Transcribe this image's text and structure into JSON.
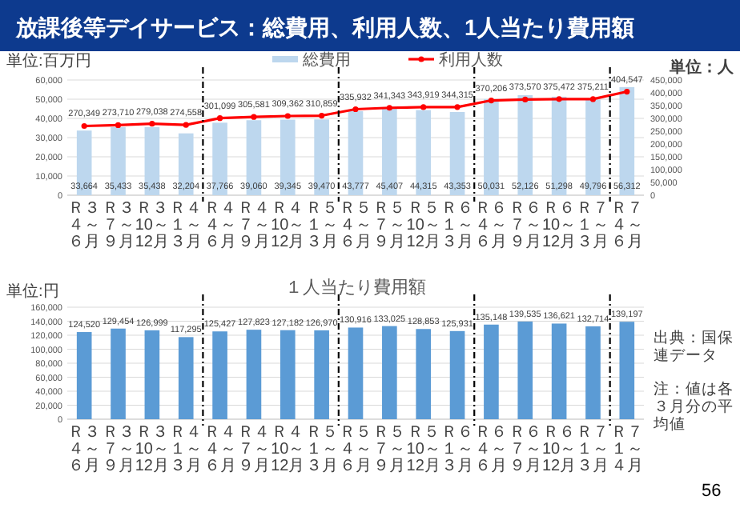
{
  "chart_data": [
    {
      "type": "bar",
      "title": "放課後等デイサービス：総費用、利用人数、1人当たり費用額",
      "ylabel": "単位:百万円",
      "y2label": "単位：人",
      "categories": [
        "Ｒ３４～６月",
        "Ｒ３７～９月",
        "Ｒ３10～12月",
        "Ｒ４１～３月",
        "Ｒ４４～６月",
        "Ｒ４７～９月",
        "Ｒ４10～12月",
        "Ｒ５１～３月",
        "Ｒ５４～６月",
        "Ｒ５７～９月",
        "Ｒ５10～12月",
        "Ｒ６１～３月",
        "Ｒ６４～６月",
        "Ｒ６７～９月",
        "Ｒ６10～12月",
        "Ｒ７１～３月",
        "Ｒ７４～６月"
      ],
      "series": [
        {
          "name": "総費用",
          "type": "bar",
          "color": "#bdd7ee",
          "values": [
            33664,
            35433,
            35438,
            32204,
            37766,
            39060,
            39345,
            39470,
            43777,
            45407,
            44315,
            43353,
            50031,
            52126,
            51298,
            49796,
            56312
          ],
          "value_labels": [
            "33,664",
            "35,433",
            "35,438",
            "32,204",
            "37,766",
            "39,060",
            "39,345",
            "39,470",
            "43,777",
            "45,407",
            "44,315",
            "43,353",
            "50,031",
            "52,126",
            "51,298",
            "49,796",
            "56,312"
          ]
        },
        {
          "name": "利用人数",
          "type": "line",
          "axis": "y2",
          "color": "#ff0000",
          "values": [
            270349,
            273710,
            279038,
            274558,
            301099,
            305581,
            309362,
            310859,
            335932,
            341343,
            343919,
            344315,
            370206,
            373570,
            375472,
            375211,
            404547
          ],
          "value_labels": [
            "270,349",
            "273,710",
            "279,038",
            "274,558",
            "301,099",
            "305,581",
            "309,362",
            "310,859",
            "335,932",
            "341,343",
            "343,919",
            "344,315",
            "370,206",
            "373,570",
            "375,472",
            "375,211",
            "404,547"
          ]
        }
      ],
      "marker": "circle",
      "ylim": [
        0,
        60000
      ],
      "yticks": [
        0,
        {
          "value": 10000,
          "label": "10,000"
        },
        {
          "value": 20000,
          "label": "20,000"
        },
        {
          "value": 30000,
          "label": "30,000"
        },
        {
          "value": 40000,
          "label": "40,000"
        },
        {
          "value": 50000,
          "label": "50,000"
        },
        {
          "value": 60000,
          "label": "60,000"
        }
      ],
      "y2lim": [
        0,
        450000
      ],
      "y2ticks": [
        0,
        {
          "value": 50000,
          "label": "50,000"
        },
        {
          "value": 100000,
          "label": "100,000"
        },
        {
          "value": 150000,
          "label": "150,000"
        },
        {
          "value": 200000,
          "label": "200,000"
        },
        {
          "value": 250000,
          "label": "250,000"
        },
        {
          "value": 300000,
          "label": "300,000"
        },
        {
          "value": 350000,
          "label": "350,000"
        },
        {
          "value": 400000,
          "label": "400,000"
        },
        {
          "value": 450000,
          "label": "450,000"
        }
      ],
      "grid": "y",
      "legend": "top"
    },
    {
      "type": "bar",
      "title": "１人当たり費用額",
      "ylabel": "単位:円",
      "categories": [
        "Ｒ３４～６月",
        "Ｒ３７～９月",
        "Ｒ３10～12月",
        "Ｒ４１～３月",
        "Ｒ４４～６月",
        "Ｒ４７～９月",
        "Ｒ４10～12月",
        "Ｒ５１～３月",
        "Ｒ５４～６月",
        "Ｒ５７～９月",
        "Ｒ５10～12月",
        "Ｒ６１～３月",
        "Ｒ６４～６月",
        "Ｒ６７～９月",
        "Ｒ６10～12月",
        "Ｒ７１～３月",
        "Ｒ７１～４月"
      ],
      "values": [
        124520,
        129454,
        126999,
        117295,
        125427,
        127823,
        127182,
        126970,
        130916,
        133025,
        128853,
        125931,
        135148,
        139535,
        136621,
        132714,
        139197
      ],
      "value_labels": [
        "124,520",
        "129,454",
        "126,999",
        "117,295",
        "125,427",
        "127,823",
        "127,182",
        "126,970",
        "130,916",
        "133,025",
        "128,853",
        "125,931",
        "135,148",
        "139,535",
        "136,621",
        "132,714",
        "139,197"
      ],
      "color": "#5b9bd5",
      "ylim": [
        0,
        160000
      ],
      "yticks": [
        0,
        {
          "value": 20000,
          "label": "20,000"
        },
        {
          "value": 40000,
          "label": "40,000"
        },
        {
          "value": 60000,
          "label": "60,000"
        },
        {
          "value": 80000,
          "label": "80,000"
        },
        {
          "value": 100000,
          "label": "100,000"
        },
        {
          "value": 120000,
          "label": "120,000"
        },
        {
          "value": 140000,
          "label": "140,000"
        },
        {
          "value": 160000,
          "label": "160,000"
        }
      ],
      "grid": "y",
      "annotations": [
        "出典：国保連データ",
        "注：値は各３月分の平均値",
        "56"
      ]
    }
  ]
}
